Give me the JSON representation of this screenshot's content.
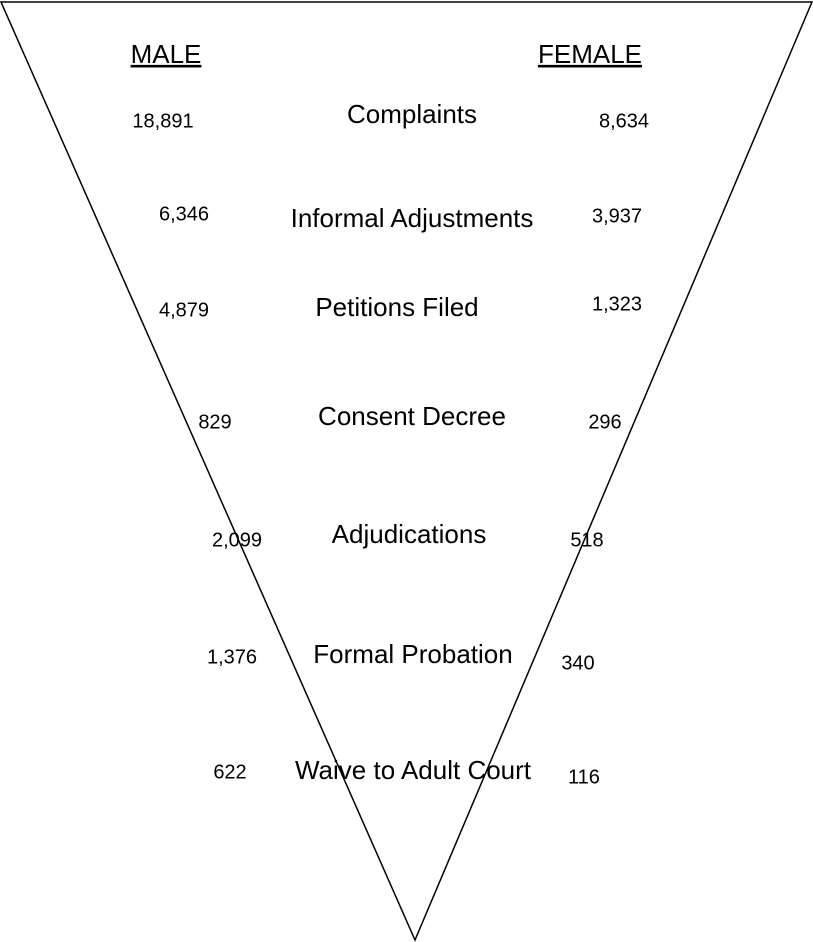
{
  "headers": {
    "male": "MALE",
    "female": "FEMALE"
  },
  "rows": [
    {
      "label": "Complaints",
      "male": "18,891",
      "female": "8,634"
    },
    {
      "label": "Informal Adjustments",
      "male": "6,346",
      "female": "3,937"
    },
    {
      "label": "Petitions Filed",
      "male": "4,879",
      "female": "1,323"
    },
    {
      "label": "Consent Decree",
      "male": "829",
      "female": "296"
    },
    {
      "label": "Adjudications",
      "male": "2,099",
      "female": "518"
    },
    {
      "label": "Formal Probation",
      "male": "1,376",
      "female": "340"
    },
    {
      "label": "Waive to Adult Court",
      "male": "622",
      "female": "116"
    }
  ]
}
